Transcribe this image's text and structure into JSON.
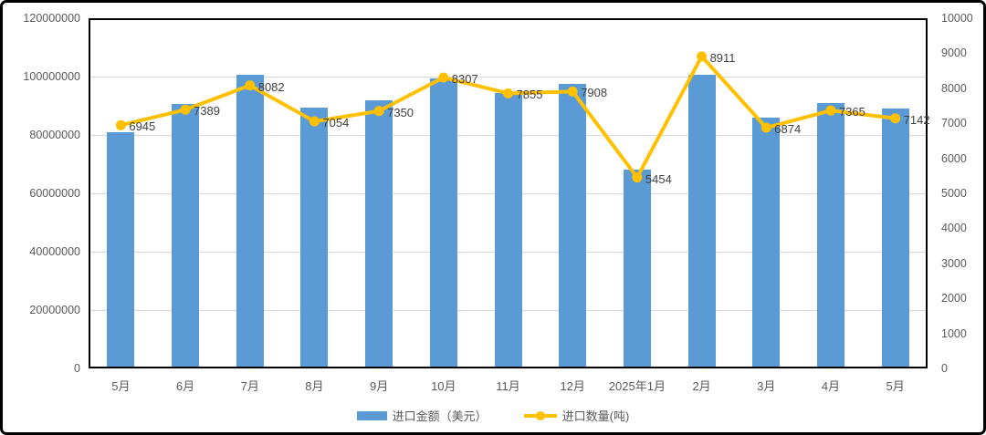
{
  "chart_data": {
    "type": "combo-bar-line",
    "categories": [
      "5月",
      "6月",
      "7月",
      "8月",
      "9月",
      "10月",
      "11月",
      "12月",
      "2025年1月",
      "2月",
      "3月",
      "4月",
      "5月"
    ],
    "series": [
      {
        "name": "进口金额（美元）",
        "type": "bar",
        "axis": "left",
        "color": "#5B9BD5",
        "values": [
          81000000,
          90500000,
          100500000,
          89500000,
          92000000,
          99500000,
          94500000,
          97500000,
          68000000,
          100500000,
          86000000,
          91000000,
          89000000
        ]
      },
      {
        "name": "进口数量(吨)",
        "type": "line",
        "axis": "right",
        "color": "#FFC000",
        "values": [
          6945,
          7389,
          8082,
          7054,
          7350,
          8307,
          7855,
          7908,
          5454,
          8911,
          6874,
          7365,
          7142
        ],
        "data_labels": [
          "6945",
          "7389",
          "8082",
          "7054",
          "7350",
          "8307",
          "7855",
          "7908",
          "5454",
          "8911",
          "6874",
          "7365",
          "7142"
        ]
      }
    ],
    "left_axis": {
      "min": 0,
      "max": 120000000,
      "step": 20000000,
      "tick_labels": [
        "0",
        "20000000",
        "40000000",
        "60000000",
        "80000000",
        "100000000",
        "120000000"
      ]
    },
    "right_axis": {
      "min": 0,
      "max": 10000,
      "step": 1000,
      "tick_labels": [
        "0",
        "1000",
        "2000",
        "3000",
        "4000",
        "5000",
        "6000",
        "7000",
        "8000",
        "9000",
        "10000"
      ]
    },
    "legend": [
      {
        "label": "进口金额（美元）",
        "marker": "bar-swatch",
        "color": "#5B9BD5"
      },
      {
        "label": "进口数量(吨)",
        "marker": "line-dot-swatch",
        "color": "#FFC000"
      }
    ],
    "grid": true,
    "colors": {
      "bar": "#5B9BD5",
      "line": "#FFC000",
      "gridline": "#D9D9D9",
      "axis_text": "#595959",
      "data_label_text": "#404040",
      "plot_border": "#000000"
    }
  }
}
